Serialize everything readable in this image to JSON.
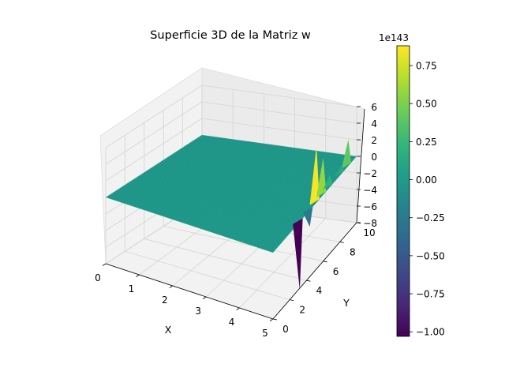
{
  "chart_data": {
    "type": "surface3d",
    "title": "Superficie 3D de la Matriz w",
    "xlabel": "X",
    "ylabel": "Y",
    "zlabel": "",
    "x_ticks": [
      "0",
      "1",
      "2",
      "3",
      "4",
      "5"
    ],
    "y_ticks": [
      "0",
      "2",
      "4",
      "6",
      "8",
      "10"
    ],
    "z_ticks": [
      "−8",
      "−6",
      "−4",
      "−2",
      "0",
      "2",
      "4",
      "6"
    ],
    "xlim": [
      0,
      5
    ],
    "ylim": [
      0,
      10
    ],
    "zlim": [
      -8,
      6
    ],
    "z_scale_note": "1e143",
    "colormap": "viridis",
    "colorbar": {
      "exponent": "1e143",
      "ticks": [
        "0.75",
        "0.50",
        "0.25",
        "0.00",
        "−0.25",
        "−0.50",
        "−0.75",
        "−1.00"
      ],
      "range": [
        -1.03,
        0.88
      ]
    },
    "surface": {
      "flat_value": 0,
      "spikes": [
        {
          "x": 5.0,
          "y": 5.2,
          "z": 6.8
        },
        {
          "x": 5.0,
          "y": 6.0,
          "z": 4.5
        },
        {
          "x": 5.0,
          "y": 9.0,
          "z": 3.2
        },
        {
          "x": 5.0,
          "y": 6.8,
          "z": 1.5
        },
        {
          "x": 5.0,
          "y": 8.2,
          "z": 1.0
        },
        {
          "x": 5.0,
          "y": 3.2,
          "z": -8.2
        },
        {
          "x": 5.0,
          "y": 4.4,
          "z": -2.0
        }
      ]
    },
    "grid": true
  }
}
